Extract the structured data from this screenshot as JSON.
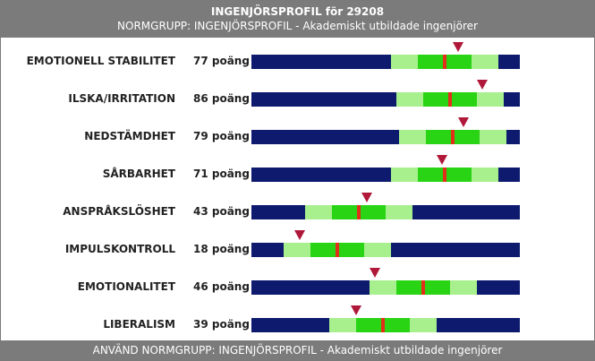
{
  "header": {
    "title": "INGENJÖRSPROFIL för 29208",
    "subtitle": "NORMGRUPP: INGENJÖRSPROFIL - Akademiskt utbildade ingenjörer"
  },
  "footer": {
    "text": "ANVÄND NORMGRUPP: INGENJÖRSPROFIL - Akademiskt utbildade ingenjörer"
  },
  "rows": [
    {
      "label": "EMOTIONELL STABILITET",
      "score": "77 poäng",
      "value": 77,
      "norm": 72
    },
    {
      "label": "ILSKA/IRRITATION",
      "score": "86 poäng",
      "value": 86,
      "norm": 74
    },
    {
      "label": "NEDSTÄMDHET",
      "score": "79 poäng",
      "value": 79,
      "norm": 75
    },
    {
      "label": "SÅRBARHET",
      "score": "71 poäng",
      "value": 71,
      "norm": 72
    },
    {
      "label": "ANSPRÅKSLÖSHET",
      "score": "43 poäng",
      "value": 43,
      "norm": 40
    },
    {
      "label": "IMPULSKONTROLL",
      "score": "18 poäng",
      "value": 18,
      "norm": 32
    },
    {
      "label": "EMOTIONALITET",
      "score": "46 poäng",
      "value": 46,
      "norm": 64
    },
    {
      "label": "LIBERALISM",
      "score": "39 poäng",
      "value": 39,
      "norm": 49
    }
  ],
  "colors": {
    "header_bg": "#7b7b7b",
    "bar_dark": "#0d1a6e",
    "bar_light_green": "#a8f08e",
    "bar_green": "#29d414",
    "norm_line": "#e0301a",
    "marker": "#b0183a"
  },
  "icons": {
    "marker": "down-triangle-marker",
    "norm": "norm-line"
  }
}
